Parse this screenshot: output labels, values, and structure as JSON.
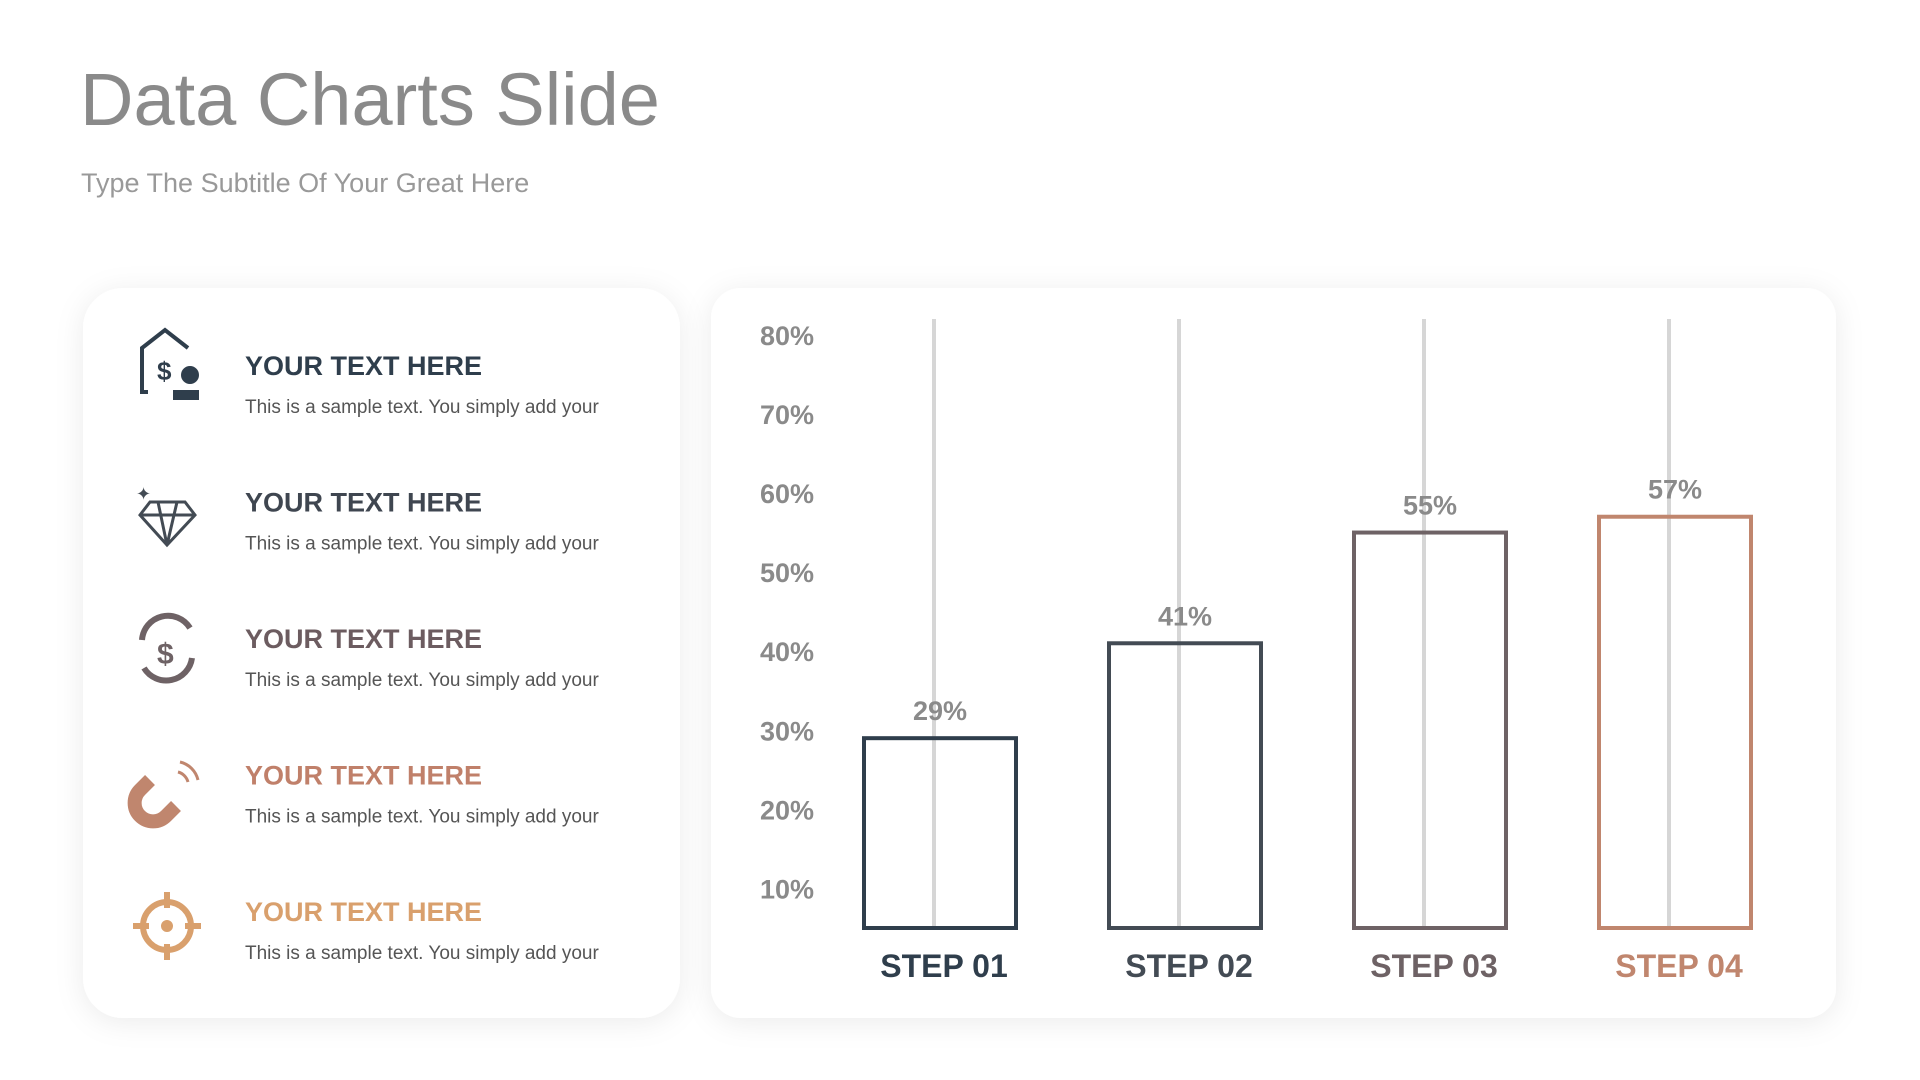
{
  "header": {
    "title": "Data Charts Slide",
    "subtitle": "Type The Subtitle Of Your Great Here"
  },
  "items": [
    {
      "heading": "YOUR TEXT HERE",
      "text": "This is a sample text. You simply add your"
    },
    {
      "heading": "YOUR TEXT HERE",
      "text": "This is a sample text. You simply add your"
    },
    {
      "heading": "YOUR TEXT HERE",
      "text": "This is a sample text. You simply add your"
    },
    {
      "heading": "YOUR TEXT HERE",
      "text": "This is a sample text. You simply add your"
    },
    {
      "heading": "YOUR TEXT HERE",
      "text": "This is a sample text. You simply add your"
    }
  ],
  "chart_data": {
    "type": "bar",
    "categories": [
      "STEP 01",
      "STEP 02",
      "STEP 03",
      "STEP 04"
    ],
    "values": [
      29,
      41,
      55,
      57
    ],
    "value_labels": [
      "29%",
      "41%",
      "55%",
      "57%"
    ],
    "colors": [
      "#2f3e4c",
      "#434b54",
      "#6e6265",
      "#c0866e"
    ],
    "ylim": [
      5,
      82
    ],
    "yticks": [
      {
        "value": 10,
        "label": "10%"
      },
      {
        "value": 20,
        "label": "20%"
      },
      {
        "value": 30,
        "label": "30%"
      },
      {
        "value": 40,
        "label": "40%"
      },
      {
        "value": 50,
        "label": "50%"
      },
      {
        "value": 60,
        "label": "60%"
      },
      {
        "value": 70,
        "label": "70%"
      },
      {
        "value": 80,
        "label": "80%"
      }
    ]
  }
}
